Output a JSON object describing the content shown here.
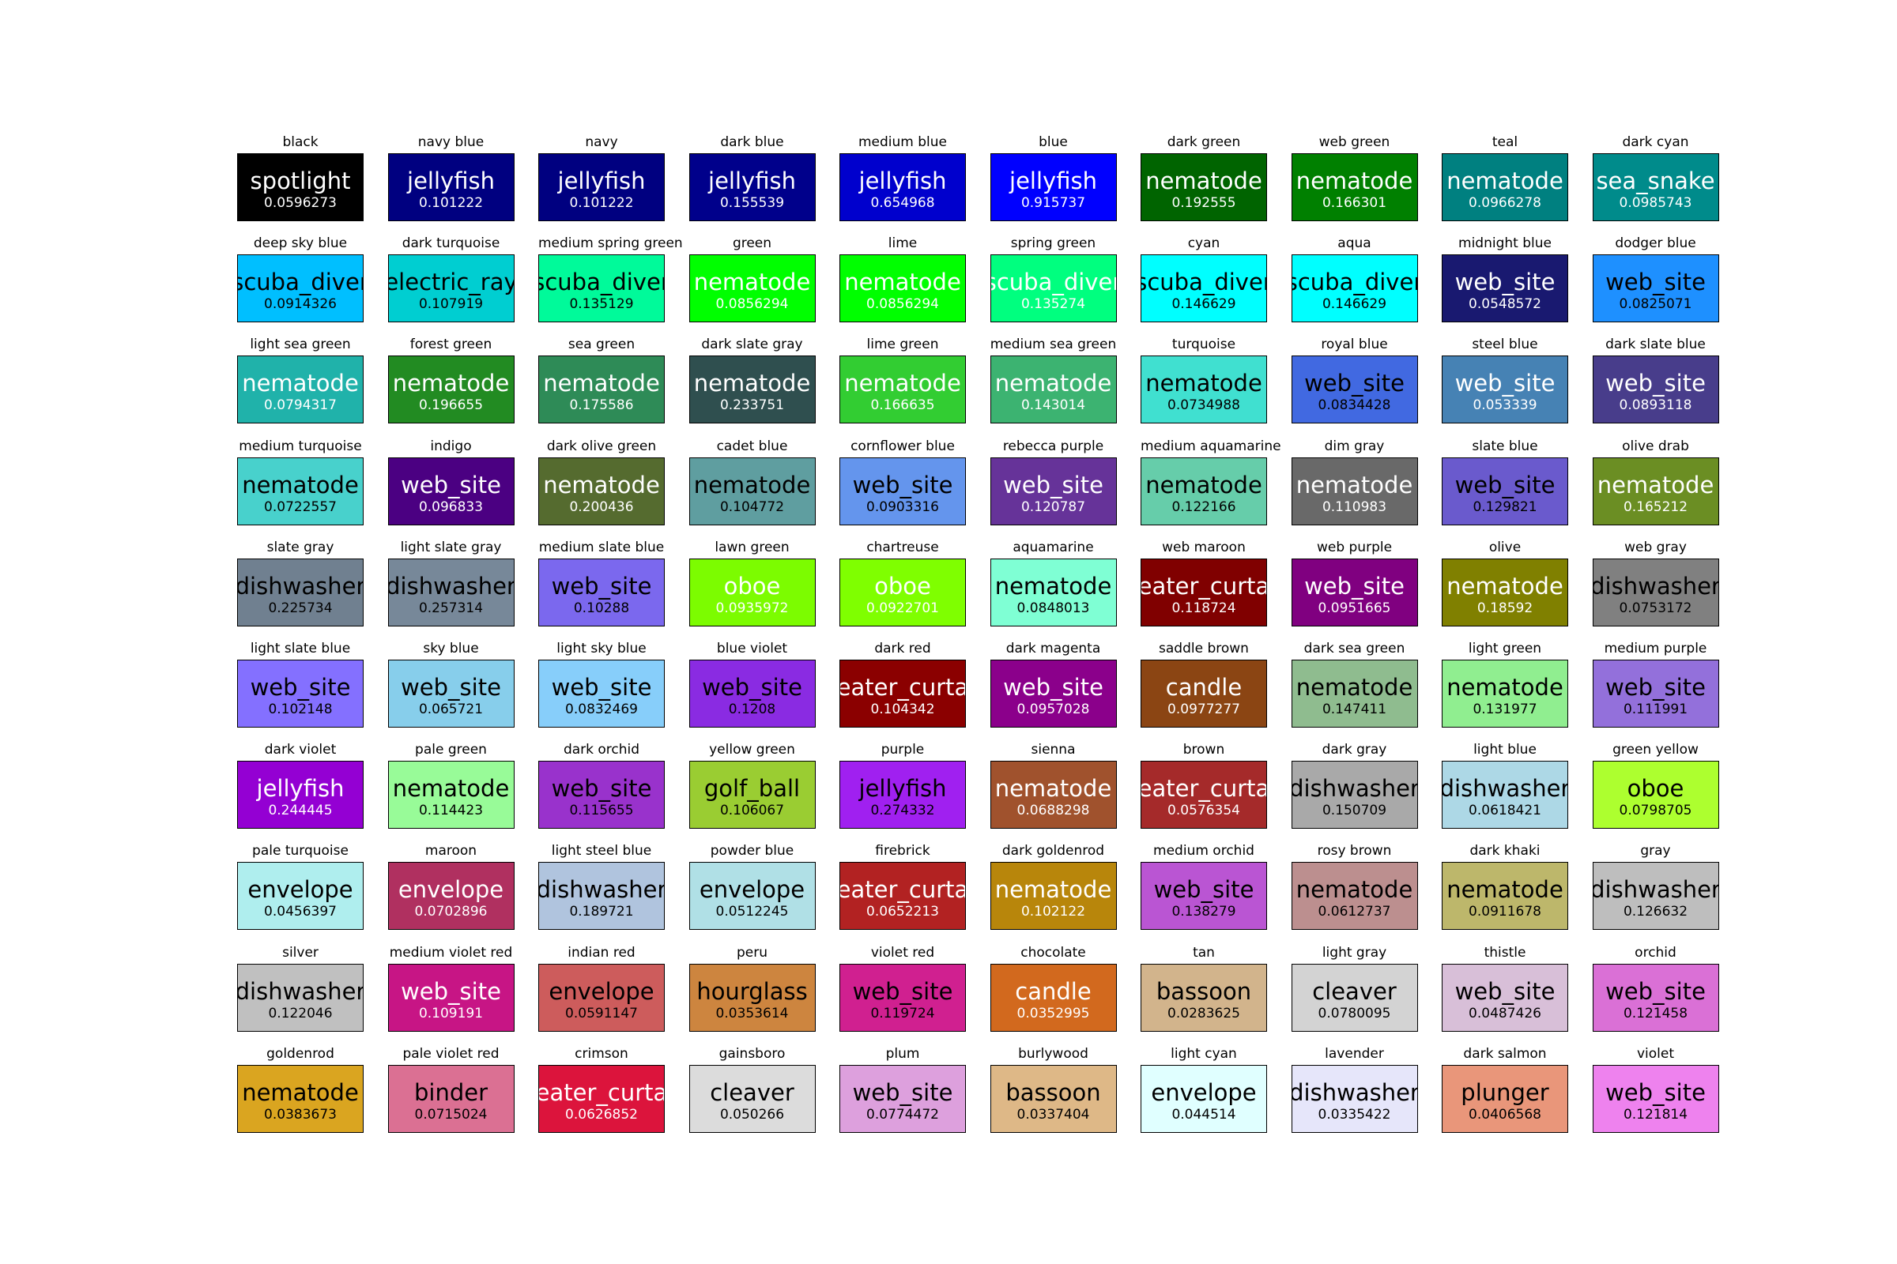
{
  "chart_data": {
    "type": "table",
    "columns": 10,
    "cells": [
      {
        "title": "black",
        "color": "#000000",
        "label": "spotlight",
        "score": "0.0596273",
        "text_color": "#ffffff"
      },
      {
        "title": "navy blue",
        "color": "#000080",
        "label": "jellyfish",
        "score": "0.101222",
        "text_color": "#ffffff"
      },
      {
        "title": "navy",
        "color": "#000080",
        "label": "jellyfish",
        "score": "0.101222",
        "text_color": "#ffffff"
      },
      {
        "title": "dark blue",
        "color": "#00008b",
        "label": "jellyfish",
        "score": "0.155539",
        "text_color": "#ffffff"
      },
      {
        "title": "medium blue",
        "color": "#0000cd",
        "label": "jellyfish",
        "score": "0.654968",
        "text_color": "#ffffff"
      },
      {
        "title": "blue",
        "color": "#0000ff",
        "label": "jellyfish",
        "score": "0.915737",
        "text_color": "#ffffff"
      },
      {
        "title": "dark green",
        "color": "#006400",
        "label": "nematode",
        "score": "0.192555",
        "text_color": "#ffffff"
      },
      {
        "title": "web green",
        "color": "#008000",
        "label": "nematode",
        "score": "0.166301",
        "text_color": "#ffffff"
      },
      {
        "title": "teal",
        "color": "#008080",
        "label": "nematode",
        "score": "0.0966278",
        "text_color": "#ffffff"
      },
      {
        "title": "dark cyan",
        "color": "#008b8b",
        "label": "sea_snake",
        "score": "0.0985743",
        "text_color": "#ffffff"
      },
      {
        "title": "deep sky blue",
        "color": "#00bfff",
        "label": "scuba_diver",
        "score": "0.0914326",
        "text_color": "#000000"
      },
      {
        "title": "dark turquoise",
        "color": "#00ced1",
        "label": "electric_ray",
        "score": "0.107919",
        "text_color": "#000000"
      },
      {
        "title": "medium spring green",
        "color": "#00fa9a",
        "label": "scuba_diver",
        "score": "0.135129",
        "text_color": "#000000"
      },
      {
        "title": "green",
        "color": "#00ff00",
        "label": "nematode",
        "score": "0.0856294",
        "text_color": "#ffffff"
      },
      {
        "title": "lime",
        "color": "#00ff00",
        "label": "nematode",
        "score": "0.0856294",
        "text_color": "#ffffff"
      },
      {
        "title": "spring green",
        "color": "#00ff7f",
        "label": "scuba_diver",
        "score": "0.135274",
        "text_color": "#ffffff"
      },
      {
        "title": "cyan",
        "color": "#00ffff",
        "label": "scuba_diver",
        "score": "0.146629",
        "text_color": "#000000"
      },
      {
        "title": "aqua",
        "color": "#00ffff",
        "label": "scuba_diver",
        "score": "0.146629",
        "text_color": "#000000"
      },
      {
        "title": "midnight blue",
        "color": "#191970",
        "label": "web_site",
        "score": "0.0548572",
        "text_color": "#ffffff"
      },
      {
        "title": "dodger blue",
        "color": "#1e90ff",
        "label": "web_site",
        "score": "0.0825071",
        "text_color": "#000000"
      },
      {
        "title": "light sea green",
        "color": "#20b2aa",
        "label": "nematode",
        "score": "0.0794317",
        "text_color": "#ffffff"
      },
      {
        "title": "forest green",
        "color": "#228b22",
        "label": "nematode",
        "score": "0.196655",
        "text_color": "#ffffff"
      },
      {
        "title": "sea green",
        "color": "#2e8b57",
        "label": "nematode",
        "score": "0.175586",
        "text_color": "#ffffff"
      },
      {
        "title": "dark slate gray",
        "color": "#2f4f4f",
        "label": "nematode",
        "score": "0.233751",
        "text_color": "#ffffff"
      },
      {
        "title": "lime green",
        "color": "#32cd32",
        "label": "nematode",
        "score": "0.166635",
        "text_color": "#ffffff"
      },
      {
        "title": "medium sea green",
        "color": "#3cb371",
        "label": "nematode",
        "score": "0.143014",
        "text_color": "#ffffff"
      },
      {
        "title": "turquoise",
        "color": "#40e0d0",
        "label": "nematode",
        "score": "0.0734988",
        "text_color": "#000000"
      },
      {
        "title": "royal blue",
        "color": "#4169e1",
        "label": "web_site",
        "score": "0.0834428",
        "text_color": "#000000"
      },
      {
        "title": "steel blue",
        "color": "#4682b4",
        "label": "web_site",
        "score": "0.053339",
        "text_color": "#ffffff"
      },
      {
        "title": "dark slate blue",
        "color": "#483d8b",
        "label": "web_site",
        "score": "0.0893118",
        "text_color": "#ffffff"
      },
      {
        "title": "medium turquoise",
        "color": "#48d1cc",
        "label": "nematode",
        "score": "0.0722557",
        "text_color": "#000000"
      },
      {
        "title": "indigo",
        "color": "#4b0082",
        "label": "web_site",
        "score": "0.096833",
        "text_color": "#ffffff"
      },
      {
        "title": "dark olive green",
        "color": "#556b2f",
        "label": "nematode",
        "score": "0.200436",
        "text_color": "#ffffff"
      },
      {
        "title": "cadet blue",
        "color": "#5f9ea0",
        "label": "nematode",
        "score": "0.104772",
        "text_color": "#000000"
      },
      {
        "title": "cornflower blue",
        "color": "#6495ed",
        "label": "web_site",
        "score": "0.0903316",
        "text_color": "#000000"
      },
      {
        "title": "rebecca purple",
        "color": "#663399",
        "label": "web_site",
        "score": "0.120787",
        "text_color": "#ffffff"
      },
      {
        "title": "medium aquamarine",
        "color": "#66cdaa",
        "label": "nematode",
        "score": "0.122166",
        "text_color": "#000000"
      },
      {
        "title": "dim gray",
        "color": "#696969",
        "label": "nematode",
        "score": "0.110983",
        "text_color": "#ffffff"
      },
      {
        "title": "slate blue",
        "color": "#6a5acd",
        "label": "web_site",
        "score": "0.129821",
        "text_color": "#000000"
      },
      {
        "title": "olive drab",
        "color": "#6b8e23",
        "label": "nematode",
        "score": "0.165212",
        "text_color": "#ffffff"
      },
      {
        "title": "slate gray",
        "color": "#708090",
        "label": "dishwasher",
        "score": "0.225734",
        "text_color": "#000000"
      },
      {
        "title": "light slate gray",
        "color": "#778899",
        "label": "dishwasher",
        "score": "0.257314",
        "text_color": "#000000"
      },
      {
        "title": "medium slate blue",
        "color": "#7b68ee",
        "label": "web_site",
        "score": "0.10288",
        "text_color": "#000000"
      },
      {
        "title": "lawn green",
        "color": "#7cfc00",
        "label": "oboe",
        "score": "0.0935972",
        "text_color": "#ffffff"
      },
      {
        "title": "chartreuse",
        "color": "#7fff00",
        "label": "oboe",
        "score": "0.0922701",
        "text_color": "#ffffff"
      },
      {
        "title": "aquamarine",
        "color": "#7fffd4",
        "label": "nematode",
        "score": "0.0848013",
        "text_color": "#000000"
      },
      {
        "title": "web maroon",
        "color": "#800000",
        "label": "eater_curta",
        "score": "0.118724",
        "text_color": "#ffffff"
      },
      {
        "title": "web purple",
        "color": "#800080",
        "label": "web_site",
        "score": "0.0951665",
        "text_color": "#ffffff"
      },
      {
        "title": "olive",
        "color": "#808000",
        "label": "nematode",
        "score": "0.18592",
        "text_color": "#ffffff"
      },
      {
        "title": "web gray",
        "color": "#808080",
        "label": "dishwasher",
        "score": "0.0753172",
        "text_color": "#000000"
      },
      {
        "title": "light slate blue",
        "color": "#8470ff",
        "label": "web_site",
        "score": "0.102148",
        "text_color": "#000000"
      },
      {
        "title": "sky blue",
        "color": "#87ceeb",
        "label": "web_site",
        "score": "0.065721",
        "text_color": "#000000"
      },
      {
        "title": "light sky blue",
        "color": "#87cefa",
        "label": "web_site",
        "score": "0.0832469",
        "text_color": "#000000"
      },
      {
        "title": "blue violet",
        "color": "#8a2be2",
        "label": "web_site",
        "score": "0.1208",
        "text_color": "#000000"
      },
      {
        "title": "dark red",
        "color": "#8b0000",
        "label": "eater_curta",
        "score": "0.104342",
        "text_color": "#ffffff"
      },
      {
        "title": "dark magenta",
        "color": "#8b008b",
        "label": "web_site",
        "score": "0.0957028",
        "text_color": "#ffffff"
      },
      {
        "title": "saddle brown",
        "color": "#8b4513",
        "label": "candle",
        "score": "0.0977277",
        "text_color": "#ffffff"
      },
      {
        "title": "dark sea green",
        "color": "#8fbc8f",
        "label": "nematode",
        "score": "0.147411",
        "text_color": "#000000"
      },
      {
        "title": "light green",
        "color": "#90ee90",
        "label": "nematode",
        "score": "0.131977",
        "text_color": "#000000"
      },
      {
        "title": "medium purple",
        "color": "#9370db",
        "label": "web_site",
        "score": "0.111991",
        "text_color": "#000000"
      },
      {
        "title": "dark violet",
        "color": "#9400d3",
        "label": "jellyfish",
        "score": "0.244445",
        "text_color": "#ffffff"
      },
      {
        "title": "pale green",
        "color": "#98fb98",
        "label": "nematode",
        "score": "0.114423",
        "text_color": "#000000"
      },
      {
        "title": "dark orchid",
        "color": "#9932cc",
        "label": "web_site",
        "score": "0.115655",
        "text_color": "#000000"
      },
      {
        "title": "yellow green",
        "color": "#9acd32",
        "label": "golf_ball",
        "score": "0.106067",
        "text_color": "#000000"
      },
      {
        "title": "purple",
        "color": "#a020f0",
        "label": "jellyfish",
        "score": "0.274332",
        "text_color": "#000000"
      },
      {
        "title": "sienna",
        "color": "#a0522d",
        "label": "nematode",
        "score": "0.0688298",
        "text_color": "#ffffff"
      },
      {
        "title": "brown",
        "color": "#a52a2a",
        "label": "eater_curta",
        "score": "0.0576354",
        "text_color": "#ffffff"
      },
      {
        "title": "dark gray",
        "color": "#a9a9a9",
        "label": "dishwasher",
        "score": "0.150709",
        "text_color": "#000000"
      },
      {
        "title": "light blue",
        "color": "#add8e6",
        "label": "dishwasher",
        "score": "0.0618421",
        "text_color": "#000000"
      },
      {
        "title": "green yellow",
        "color": "#adff2f",
        "label": "oboe",
        "score": "0.0798705",
        "text_color": "#000000"
      },
      {
        "title": "pale turquoise",
        "color": "#afeeee",
        "label": "envelope",
        "score": "0.0456397",
        "text_color": "#000000"
      },
      {
        "title": "maroon",
        "color": "#b03060",
        "label": "envelope",
        "score": "0.0702896",
        "text_color": "#ffffff"
      },
      {
        "title": "light steel blue",
        "color": "#b0c4de",
        "label": "dishwasher",
        "score": "0.189721",
        "text_color": "#000000"
      },
      {
        "title": "powder blue",
        "color": "#b0e0e6",
        "label": "envelope",
        "score": "0.0512245",
        "text_color": "#000000"
      },
      {
        "title": "firebrick",
        "color": "#b22222",
        "label": "eater_curta",
        "score": "0.0652213",
        "text_color": "#ffffff"
      },
      {
        "title": "dark goldenrod",
        "color": "#b8860b",
        "label": "nematode",
        "score": "0.102122",
        "text_color": "#ffffff"
      },
      {
        "title": "medium orchid",
        "color": "#ba55d3",
        "label": "web_site",
        "score": "0.138279",
        "text_color": "#000000"
      },
      {
        "title": "rosy brown",
        "color": "#bc8f8f",
        "label": "nematode",
        "score": "0.0612737",
        "text_color": "#000000"
      },
      {
        "title": "dark khaki",
        "color": "#bdb76b",
        "label": "nematode",
        "score": "0.0911678",
        "text_color": "#000000"
      },
      {
        "title": "gray",
        "color": "#bebebe",
        "label": "dishwasher",
        "score": "0.126632",
        "text_color": "#000000"
      },
      {
        "title": "silver",
        "color": "#c0c0c0",
        "label": "dishwasher",
        "score": "0.122046",
        "text_color": "#000000"
      },
      {
        "title": "medium violet red",
        "color": "#c71585",
        "label": "web_site",
        "score": "0.109191",
        "text_color": "#ffffff"
      },
      {
        "title": "indian red",
        "color": "#cd5c5c",
        "label": "envelope",
        "score": "0.0591147",
        "text_color": "#000000"
      },
      {
        "title": "peru",
        "color": "#cd853f",
        "label": "hourglass",
        "score": "0.0353614",
        "text_color": "#000000"
      },
      {
        "title": "violet red",
        "color": "#d02090",
        "label": "web_site",
        "score": "0.119724",
        "text_color": "#000000"
      },
      {
        "title": "chocolate",
        "color": "#d2691e",
        "label": "candle",
        "score": "0.0352995",
        "text_color": "#ffffff"
      },
      {
        "title": "tan",
        "color": "#d2b48c",
        "label": "bassoon",
        "score": "0.0283625",
        "text_color": "#000000"
      },
      {
        "title": "light gray",
        "color": "#d3d3d3",
        "label": "cleaver",
        "score": "0.0780095",
        "text_color": "#000000"
      },
      {
        "title": "thistle",
        "color": "#d8bfd8",
        "label": "web_site",
        "score": "0.0487426",
        "text_color": "#000000"
      },
      {
        "title": "orchid",
        "color": "#da70d6",
        "label": "web_site",
        "score": "0.121458",
        "text_color": "#000000"
      },
      {
        "title": "goldenrod",
        "color": "#daa520",
        "label": "nematode",
        "score": "0.0383673",
        "text_color": "#000000"
      },
      {
        "title": "pale violet red",
        "color": "#db7093",
        "label": "binder",
        "score": "0.0715024",
        "text_color": "#000000"
      },
      {
        "title": "crimson",
        "color": "#dc143c",
        "label": "eater_curta",
        "score": "0.0626852",
        "text_color": "#ffffff"
      },
      {
        "title": "gainsboro",
        "color": "#dcdcdc",
        "label": "cleaver",
        "score": "0.050266",
        "text_color": "#000000"
      },
      {
        "title": "plum",
        "color": "#dda0dd",
        "label": "web_site",
        "score": "0.0774472",
        "text_color": "#000000"
      },
      {
        "title": "burlywood",
        "color": "#deb887",
        "label": "bassoon",
        "score": "0.0337404",
        "text_color": "#000000"
      },
      {
        "title": "light cyan",
        "color": "#e0ffff",
        "label": "envelope",
        "score": "0.044514",
        "text_color": "#000000"
      },
      {
        "title": "lavender",
        "color": "#e6e6fa",
        "label": "dishwasher",
        "score": "0.0335422",
        "text_color": "#000000"
      },
      {
        "title": "dark salmon",
        "color": "#e9967a",
        "label": "plunger",
        "score": "0.0406568",
        "text_color": "#000000"
      },
      {
        "title": "violet",
        "color": "#ee82ee",
        "label": "web_site",
        "score": "0.121814",
        "text_color": "#000000"
      }
    ]
  }
}
